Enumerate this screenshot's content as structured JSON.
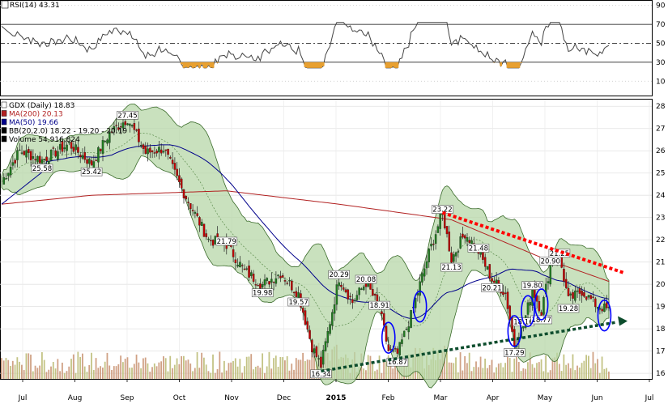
{
  "rsi_panel": {
    "label": "RSI(14) 43.31",
    "ticks": [
      "90",
      "70",
      "50",
      "30",
      "10"
    ],
    "levels": [
      90,
      70,
      50,
      30,
      10
    ]
  },
  "price_panel": {
    "legend": [
      {
        "text": "GDX (Daily) 18.83",
        "color": "#000000"
      },
      {
        "text": "MA(200) 20.13",
        "color": "#b22222"
      },
      {
        "text": "MA(50) 19.66",
        "color": "#00008b"
      },
      {
        "text": "BB(20,2.0) 18.22 - 19.20 - 20.19",
        "color": "#000000"
      },
      {
        "text": "Volume 54,916,824",
        "color": "#000000"
      }
    ],
    "y_ticks": [
      28,
      27,
      26,
      25,
      24,
      23,
      22,
      21,
      20,
      19,
      18,
      17,
      16
    ],
    "ylim": [
      15.75,
      28.3
    ],
    "annotations": [
      {
        "text": "27.45",
        "value": 27.45
      },
      {
        "text": "25.58",
        "value": 25.58
      },
      {
        "text": "25.42",
        "value": 25.42
      },
      {
        "text": "21.79",
        "value": 21.79
      },
      {
        "text": "19.98",
        "value": 19.98
      },
      {
        "text": "19.57",
        "value": 19.57
      },
      {
        "text": "16.34",
        "value": 16.34
      },
      {
        "text": "20.29",
        "value": 20.29
      },
      {
        "text": "20.08",
        "value": 20.08
      },
      {
        "text": "18.91",
        "value": 18.91
      },
      {
        "text": "16.87",
        "value": 16.87
      },
      {
        "text": "23.22",
        "value": 23.22
      },
      {
        "text": "21.13",
        "value": 21.13
      },
      {
        "text": "21.48",
        "value": 21.48
      },
      {
        "text": "20.21",
        "value": 20.21
      },
      {
        "text": "17.29",
        "value": 17.29
      },
      {
        "text": "18.16",
        "value": 18.16
      },
      {
        "text": "19.80",
        "value": 19.8
      },
      {
        "text": "18.77",
        "value": 18.77
      },
      {
        "text": "20.90",
        "value": 20.9
      },
      {
        "text": "21.25",
        "value": 21.25
      },
      {
        "text": "19.28",
        "value": 19.28
      }
    ]
  },
  "x_axis": {
    "labels": [
      "Jul",
      "Aug",
      "Sep",
      "Oct",
      "Nov",
      "Dec",
      "2015",
      "Feb",
      "Mar",
      "Apr",
      "May",
      "Jun",
      "Jul"
    ]
  },
  "colors": {
    "bollinger_fill": "#b7d7a8",
    "ma200": "#b22222",
    "ma50": "#00008b",
    "candle_up": "#1f7a1f",
    "candle_down": "#c00000",
    "resistance_line": "#ff0000",
    "support_line": "#0d4d2d",
    "circles": "#0000ff"
  },
  "chart_data": {
    "type": "candlestick",
    "symbol": "GDX",
    "interval": "Daily",
    "close_last": 18.83,
    "ma200_last": 20.13,
    "ma50_last": 19.66,
    "bollinger_last": {
      "lower": 18.22,
      "middle": 19.2,
      "upper": 20.19
    },
    "volume_last": 54916824,
    "rsi_last": 43.31,
    "swing_points": [
      27.45,
      25.58,
      25.42,
      21.79,
      19.98,
      19.57,
      16.34,
      20.29,
      20.08,
      18.91,
      16.87,
      23.22,
      21.13,
      21.48,
      20.21,
      17.29,
      18.16,
      19.8,
      18.77,
      20.9,
      21.25,
      19.28
    ],
    "trendlines": [
      {
        "kind": "resistance",
        "from": 23.22,
        "to": 20.5
      },
      {
        "kind": "support",
        "from": 16.34,
        "to": 18.3
      }
    ]
  }
}
